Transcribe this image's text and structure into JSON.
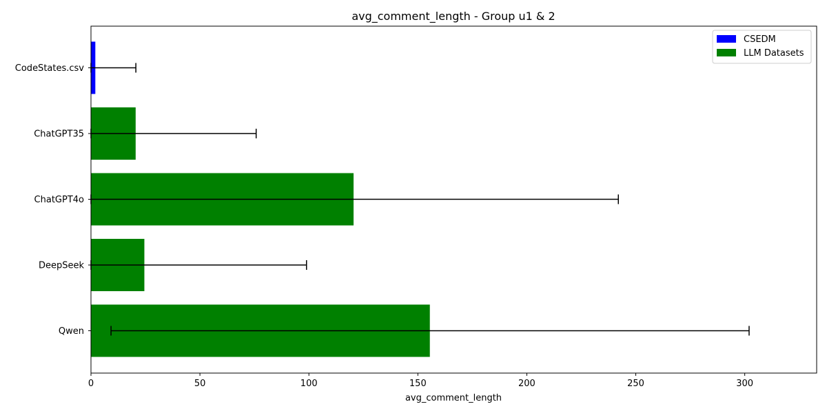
{
  "chart_data": {
    "type": "bar",
    "orientation": "horizontal",
    "title": "avg_comment_length - Group u1 & 2",
    "xlabel": "avg_comment_length",
    "ylabel": "",
    "xlim": [
      0,
      333
    ],
    "xticks": [
      0,
      50,
      100,
      150,
      200,
      250,
      300
    ],
    "grid": false,
    "legend_position": "top-right",
    "legend": [
      {
        "name": "CSEDM",
        "color": "#0000ff"
      },
      {
        "name": "LLM Datasets",
        "color": "#008000"
      }
    ],
    "categories": [
      "CodeStates.csv",
      "ChatGPT35",
      "ChatGPT4o",
      "DeepSeek",
      "Qwen"
    ],
    "values": [
      2,
      20.5,
      120.5,
      24.5,
      155.5
    ],
    "error_low": [
      2,
      20.5,
      120.5,
      24.5,
      146.3
    ],
    "error_high": [
      18.6,
      55.3,
      121.5,
      74.4,
      146.5
    ],
    "groups": [
      "CSEDM",
      "LLM Datasets",
      "LLM Datasets",
      "LLM Datasets",
      "LLM Datasets"
    ]
  }
}
